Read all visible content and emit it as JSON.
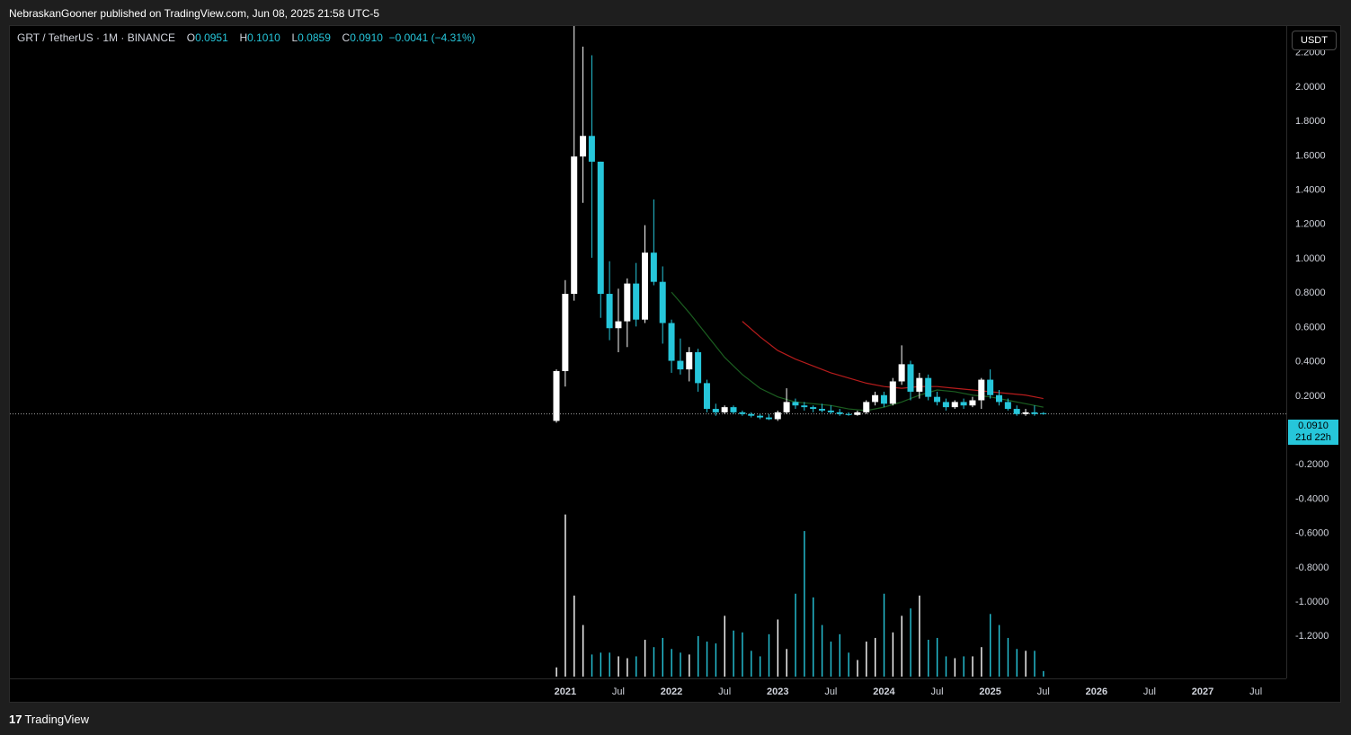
{
  "header": {
    "published_by": "NebraskanGooner published on TradingView.com, Jun 08, 2025 21:58 UTC-5"
  },
  "legend": {
    "symbol": "GRT / TetherUS · 1M · BINANCE",
    "open_label": "O",
    "open": "0.0951",
    "high_label": "H",
    "high": "0.1010",
    "low_label": "L",
    "low": "0.0859",
    "close_label": "C",
    "close": "0.0910",
    "change": "−0.0041 (−4.31%)"
  },
  "currency_button": "USDT",
  "last_price": {
    "value": "0.0910",
    "countdown": "21d 22h"
  },
  "footer": {
    "logo": "17",
    "brand": "TradingView"
  },
  "colors": {
    "up": "#ffffff",
    "down": "#26c6da",
    "ma_short": "#1b5e20",
    "ma_long": "#b71c1c",
    "background": "#000000"
  },
  "chart_data": {
    "type": "candlestick",
    "title": "GRT / TetherUS · 1M · BINANCE",
    "ylim": [
      -1.45,
      2.35
    ],
    "y_ticks": [
      "2.2000",
      "2.0000",
      "1.8000",
      "1.6000",
      "1.4000",
      "1.2000",
      "1.0000",
      "0.8000",
      "0.6000",
      "0.4000",
      "0.2000",
      "-0.2000",
      "-0.4000",
      "-0.6000",
      "-0.8000",
      "-1.0000",
      "-1.2000"
    ],
    "x_ticks": [
      "2021",
      "Jul",
      "2022",
      "Jul",
      "2023",
      "Jul",
      "2024",
      "Jul",
      "2025",
      "Jul",
      "2026",
      "Jul",
      "2027",
      "Jul"
    ],
    "first_month": "2020-12",
    "candles": [
      {
        "o": 0.05,
        "h": 0.35,
        "l": 0.04,
        "c": 0.34
      },
      {
        "o": 0.34,
        "h": 0.87,
        "l": 0.25,
        "c": 0.79
      },
      {
        "o": 0.79,
        "h": 2.84,
        "l": 0.75,
        "c": 1.59
      },
      {
        "o": 1.59,
        "h": 2.23,
        "l": 1.32,
        "c": 1.71
      },
      {
        "o": 1.71,
        "h": 2.18,
        "l": 1.0,
        "c": 1.56
      },
      {
        "o": 1.56,
        "h": 1.56,
        "l": 0.65,
        "c": 0.79
      },
      {
        "o": 0.79,
        "h": 0.98,
        "l": 0.52,
        "c": 0.59
      },
      {
        "o": 0.59,
        "h": 0.82,
        "l": 0.45,
        "c": 0.63
      },
      {
        "o": 0.63,
        "h": 0.88,
        "l": 0.48,
        "c": 0.85
      },
      {
        "o": 0.85,
        "h": 0.97,
        "l": 0.6,
        "c": 0.64
      },
      {
        "o": 0.64,
        "h": 1.19,
        "l": 0.62,
        "c": 1.03
      },
      {
        "o": 1.03,
        "h": 1.34,
        "l": 0.84,
        "c": 0.86
      },
      {
        "o": 0.86,
        "h": 0.95,
        "l": 0.5,
        "c": 0.62
      },
      {
        "o": 0.62,
        "h": 0.64,
        "l": 0.33,
        "c": 0.4
      },
      {
        "o": 0.4,
        "h": 0.53,
        "l": 0.32,
        "c": 0.35
      },
      {
        "o": 0.35,
        "h": 0.48,
        "l": 0.28,
        "c": 0.45
      },
      {
        "o": 0.45,
        "h": 0.47,
        "l": 0.22,
        "c": 0.27
      },
      {
        "o": 0.27,
        "h": 0.29,
        "l": 0.1,
        "c": 0.12
      },
      {
        "o": 0.12,
        "h": 0.15,
        "l": 0.08,
        "c": 0.1
      },
      {
        "o": 0.1,
        "h": 0.14,
        "l": 0.09,
        "c": 0.13
      },
      {
        "o": 0.13,
        "h": 0.14,
        "l": 0.09,
        "c": 0.1
      },
      {
        "o": 0.1,
        "h": 0.11,
        "l": 0.08,
        "c": 0.09
      },
      {
        "o": 0.09,
        "h": 0.1,
        "l": 0.07,
        "c": 0.08
      },
      {
        "o": 0.08,
        "h": 0.09,
        "l": 0.06,
        "c": 0.07
      },
      {
        "o": 0.07,
        "h": 0.09,
        "l": 0.055,
        "c": 0.06
      },
      {
        "o": 0.06,
        "h": 0.11,
        "l": 0.05,
        "c": 0.1
      },
      {
        "o": 0.1,
        "h": 0.24,
        "l": 0.09,
        "c": 0.16
      },
      {
        "o": 0.16,
        "h": 0.18,
        "l": 0.12,
        "c": 0.14
      },
      {
        "o": 0.14,
        "h": 0.16,
        "l": 0.11,
        "c": 0.13
      },
      {
        "o": 0.13,
        "h": 0.14,
        "l": 0.1,
        "c": 0.12
      },
      {
        "o": 0.12,
        "h": 0.15,
        "l": 0.1,
        "c": 0.11
      },
      {
        "o": 0.11,
        "h": 0.14,
        "l": 0.09,
        "c": 0.1
      },
      {
        "o": 0.1,
        "h": 0.12,
        "l": 0.08,
        "c": 0.09
      },
      {
        "o": 0.09,
        "h": 0.1,
        "l": 0.08,
        "c": 0.085
      },
      {
        "o": 0.085,
        "h": 0.11,
        "l": 0.08,
        "c": 0.1
      },
      {
        "o": 0.1,
        "h": 0.17,
        "l": 0.09,
        "c": 0.16
      },
      {
        "o": 0.16,
        "h": 0.22,
        "l": 0.14,
        "c": 0.2
      },
      {
        "o": 0.2,
        "h": 0.22,
        "l": 0.13,
        "c": 0.15
      },
      {
        "o": 0.15,
        "h": 0.3,
        "l": 0.14,
        "c": 0.28
      },
      {
        "o": 0.28,
        "h": 0.49,
        "l": 0.26,
        "c": 0.38
      },
      {
        "o": 0.38,
        "h": 0.4,
        "l": 0.17,
        "c": 0.22
      },
      {
        "o": 0.22,
        "h": 0.33,
        "l": 0.18,
        "c": 0.3
      },
      {
        "o": 0.3,
        "h": 0.32,
        "l": 0.17,
        "c": 0.19
      },
      {
        "o": 0.19,
        "h": 0.22,
        "l": 0.14,
        "c": 0.16
      },
      {
        "o": 0.16,
        "h": 0.18,
        "l": 0.11,
        "c": 0.13
      },
      {
        "o": 0.13,
        "h": 0.17,
        "l": 0.12,
        "c": 0.16
      },
      {
        "o": 0.16,
        "h": 0.18,
        "l": 0.12,
        "c": 0.14
      },
      {
        "o": 0.14,
        "h": 0.19,
        "l": 0.13,
        "c": 0.17
      },
      {
        "o": 0.17,
        "h": 0.3,
        "l": 0.12,
        "c": 0.29
      },
      {
        "o": 0.29,
        "h": 0.35,
        "l": 0.18,
        "c": 0.2
      },
      {
        "o": 0.2,
        "h": 0.23,
        "l": 0.14,
        "c": 0.16
      },
      {
        "o": 0.16,
        "h": 0.18,
        "l": 0.11,
        "c": 0.12
      },
      {
        "o": 0.12,
        "h": 0.14,
        "l": 0.08,
        "c": 0.09
      },
      {
        "o": 0.09,
        "h": 0.12,
        "l": 0.08,
        "c": 0.1
      },
      {
        "o": 0.1,
        "h": 0.14,
        "l": 0.08,
        "c": 0.09
      },
      {
        "o": 0.0951,
        "h": 0.101,
        "l": 0.0859,
        "c": 0.091
      }
    ],
    "ma_short": [
      {
        "i": 13,
        "v": 0.8
      },
      {
        "i": 15,
        "v": 0.68
      },
      {
        "i": 17,
        "v": 0.55
      },
      {
        "i": 19,
        "v": 0.42
      },
      {
        "i": 21,
        "v": 0.32
      },
      {
        "i": 23,
        "v": 0.24
      },
      {
        "i": 25,
        "v": 0.19
      },
      {
        "i": 27,
        "v": 0.16
      },
      {
        "i": 29,
        "v": 0.15
      },
      {
        "i": 31,
        "v": 0.14
      },
      {
        "i": 33,
        "v": 0.12
      },
      {
        "i": 35,
        "v": 0.11
      },
      {
        "i": 37,
        "v": 0.13
      },
      {
        "i": 39,
        "v": 0.16
      },
      {
        "i": 41,
        "v": 0.2
      },
      {
        "i": 43,
        "v": 0.23
      },
      {
        "i": 45,
        "v": 0.22
      },
      {
        "i": 47,
        "v": 0.2
      },
      {
        "i": 49,
        "v": 0.19
      },
      {
        "i": 51,
        "v": 0.17
      },
      {
        "i": 53,
        "v": 0.15
      },
      {
        "i": 55,
        "v": 0.13
      }
    ],
    "ma_long": [
      {
        "i": 21,
        "v": 0.63
      },
      {
        "i": 23,
        "v": 0.54
      },
      {
        "i": 25,
        "v": 0.46
      },
      {
        "i": 27,
        "v": 0.41
      },
      {
        "i": 29,
        "v": 0.37
      },
      {
        "i": 31,
        "v": 0.33
      },
      {
        "i": 33,
        "v": 0.3
      },
      {
        "i": 35,
        "v": 0.27
      },
      {
        "i": 37,
        "v": 0.25
      },
      {
        "i": 39,
        "v": 0.24
      },
      {
        "i": 41,
        "v": 0.25
      },
      {
        "i": 43,
        "v": 0.25
      },
      {
        "i": 45,
        "v": 0.24
      },
      {
        "i": 47,
        "v": 0.23
      },
      {
        "i": 49,
        "v": 0.22
      },
      {
        "i": 51,
        "v": 0.21
      },
      {
        "i": 53,
        "v": 0.2
      },
      {
        "i": 55,
        "v": 0.18
      }
    ],
    "volume": [
      0.05,
      0.88,
      0.44,
      0.28,
      0.12,
      0.13,
      0.13,
      0.11,
      0.1,
      0.11,
      0.2,
      0.16,
      0.21,
      0.15,
      0.13,
      0.12,
      0.22,
      0.19,
      0.18,
      0.33,
      0.25,
      0.24,
      0.14,
      0.11,
      0.23,
      0.31,
      0.15,
      0.45,
      0.79,
      0.43,
      0.28,
      0.19,
      0.23,
      0.13,
      0.09,
      0.19,
      0.21,
      0.45,
      0.24,
      0.33,
      0.37,
      0.44,
      0.2,
      0.21,
      0.11,
      0.1,
      0.11,
      0.11,
      0.16,
      0.34,
      0.28,
      0.21,
      0.15,
      0.14,
      0.14,
      0.03
    ]
  }
}
